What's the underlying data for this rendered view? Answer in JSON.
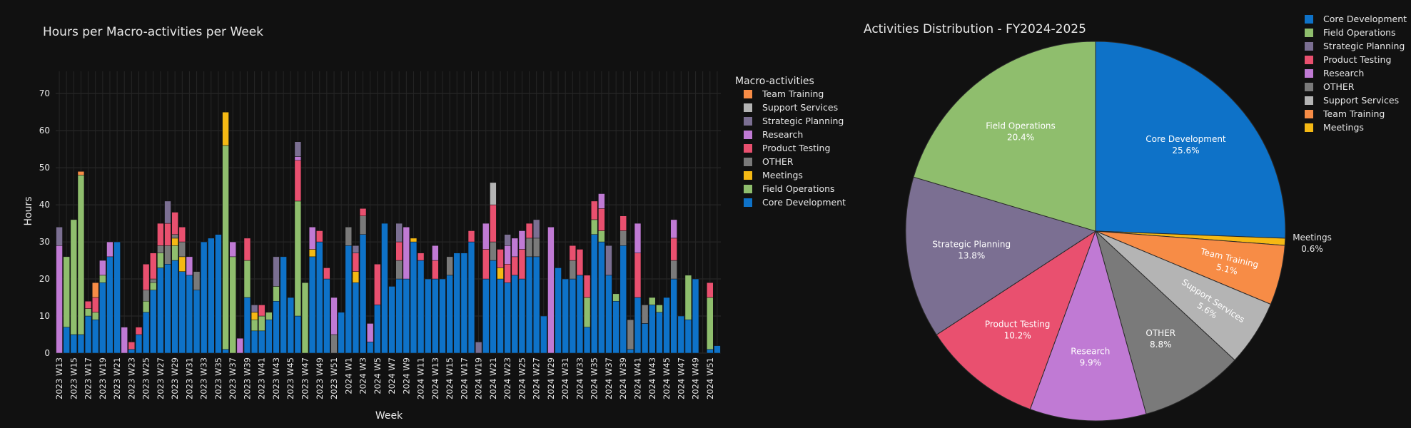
{
  "chart_data": [
    {
      "type": "bar",
      "stacked": true,
      "title": "Hours per Macro-activities per Week",
      "xlabel": "Week",
      "ylabel": "Hours",
      "ylim": [
        0,
        76
      ],
      "yticks": [
        0,
        10,
        20,
        30,
        40,
        50,
        60,
        70
      ],
      "grid": true,
      "legend_title": "Macro-activities",
      "legend_position": "right",
      "categories": [
        "2023 W13",
        "2023 W14",
        "2023 W15",
        "2023 W16",
        "2023 W17",
        "2023 W18",
        "2023 W19",
        "2023 W20",
        "2023 W21",
        "2023 W22",
        "2023 W23",
        "2023 W24",
        "2023 W25",
        "2023 W26",
        "2023 W27",
        "2023 W28",
        "2023 W29",
        "2023 W30",
        "2023 W31",
        "2023 W32",
        "2023 W33",
        "2023 W34",
        "2023 W35",
        "2023 W36",
        "2023 W37",
        "2023 W38",
        "2023 W39",
        "2023 W40",
        "2023 W41",
        "2023 W42",
        "2023 W43",
        "2023 W44",
        "2023 W45",
        "2023 W46",
        "2023 W47",
        "2023 W48",
        "2023 W49",
        "2023 W50",
        "2023 W51",
        "2023 W52",
        "2024 W1",
        "2024 W2",
        "2024 W3",
        "2024 W4",
        "2024 W5",
        "2024 W6",
        "2024 W7",
        "2024 W8",
        "2024 W9",
        "2024 W10",
        "2024 W11",
        "2024 W12",
        "2024 W13",
        "2024 W14",
        "2024 W15",
        "2024 W16",
        "2024 W17",
        "2024 W18",
        "2024 W19",
        "2024 W20",
        "2024 W21",
        "2024 W22",
        "2024 W23",
        "2024 W24",
        "2024 W25",
        "2024 W26",
        "2024 W27",
        "2024 W28",
        "2024 W29",
        "2024 W30",
        "2024 W31",
        "2024 W32",
        "2024 W33",
        "2024 W34",
        "2024 W35",
        "2024 W36",
        "2024 W37",
        "2024 W38",
        "2024 W39",
        "2024 W40",
        "2024 W41",
        "2024 W42",
        "2024 W43",
        "2024 W44",
        "2024 W45",
        "2024 W46",
        "2024 W47",
        "2024 W48",
        "2024 W49",
        "2024 W50",
        "2024 W51",
        "2024 W52"
      ],
      "xtick_labels": [
        "2023 W13",
        "2023 W15",
        "2023 W17",
        "2023 W19",
        "2023 W21",
        "2023 W23",
        "2023 W25",
        "2023 W27",
        "2023 W29",
        "2023 W31",
        "2023 W33",
        "2023 W35",
        "2023 W37",
        "2023 W39",
        "2023 W41",
        "2023 W43",
        "2023 W45",
        "2023 W47",
        "2023 W49",
        "2023 W51",
        "2024 W1",
        "2024 W3",
        "2024 W5",
        "2024 W7",
        "2024 W9",
        "2024 W11",
        "2024 W13",
        "2024 W15",
        "2024 W17",
        "2024 W19",
        "2024 W21",
        "2024 W23",
        "2024 W25",
        "2024 W27",
        "2024 W29",
        "2024 W31",
        "2024 W33",
        "2024 W35",
        "2024 W37",
        "2024 W39",
        "2024 W41",
        "2024 W43",
        "2024 W45",
        "2024 W47",
        "2024 W49",
        "2024 W51"
      ],
      "series": [
        {
          "name": "Core Development",
          "color": "#0e72c8",
          "values": [
            0,
            7,
            5,
            5,
            10,
            9,
            19,
            26,
            30,
            0,
            1,
            5,
            11,
            17,
            23,
            24,
            25,
            22,
            21,
            17,
            30,
            31,
            32,
            1,
            0,
            0,
            15,
            6,
            6,
            9,
            14,
            26,
            15,
            10,
            0,
            26,
            30,
            20,
            0,
            11,
            29,
            19,
            32,
            3,
            13,
            35,
            18,
            20,
            20,
            30,
            25,
            20,
            20,
            20,
            21,
            27,
            27,
            30,
            0,
            20,
            25,
            20,
            19,
            21,
            20,
            26,
            26,
            10,
            0,
            23,
            20,
            20,
            21,
            7,
            32,
            30,
            21,
            14,
            29,
            1,
            15,
            8,
            13,
            11,
            15,
            20,
            10,
            9,
            20,
            0,
            1,
            2
          ]
        },
        {
          "name": "Field Operations",
          "color": "#8fbe6d",
          "values": [
            0,
            19,
            31,
            43,
            2,
            2,
            2,
            0,
            0,
            0,
            0,
            0,
            3,
            2,
            4,
            0,
            4,
            0,
            0,
            0,
            0,
            0,
            0,
            55,
            26,
            0,
            10,
            3,
            4,
            2,
            4,
            0,
            0,
            31,
            19,
            0,
            0,
            0,
            0,
            0,
            0,
            0,
            0,
            0,
            0,
            0,
            0,
            0,
            0,
            0,
            0,
            0,
            0,
            0,
            0,
            0,
            0,
            0,
            0,
            0,
            0,
            0,
            0,
            0,
            0,
            0,
            0,
            0,
            0,
            0,
            0,
            0,
            0,
            8,
            4,
            3,
            0,
            2,
            0,
            0,
            0,
            0,
            2,
            2,
            0,
            0,
            0,
            12,
            0,
            0,
            14,
            0
          ]
        },
        {
          "name": "Meetings",
          "color": "#f5b914",
          "values": [
            0,
            0,
            0,
            0,
            0,
            0,
            0,
            0,
            0,
            0,
            0,
            0,
            0,
            0,
            0,
            0,
            2,
            4,
            0,
            0,
            0,
            0,
            0,
            9,
            0,
            0,
            0,
            2,
            0,
            0,
            0,
            0,
            0,
            0,
            0,
            2,
            0,
            0,
            0,
            0,
            0,
            3,
            0,
            0,
            0,
            0,
            0,
            0,
            0,
            1,
            0,
            0,
            0,
            0,
            0,
            0,
            0,
            0,
            0,
            0,
            0,
            3,
            0,
            0,
            0,
            0,
            0,
            0,
            0,
            0,
            0,
            0,
            0,
            0,
            0,
            0,
            0,
            0,
            0,
            0,
            0,
            0,
            0,
            0,
            0,
            0,
            0,
            0,
            0,
            0,
            0,
            0
          ]
        },
        {
          "name": "OTHER",
          "color": "#7a7a7a",
          "values": [
            0,
            0,
            0,
            0,
            0,
            0,
            0,
            0,
            0,
            0,
            0,
            0,
            3,
            1,
            2,
            5,
            1,
            4,
            0,
            5,
            0,
            0,
            0,
            0,
            0,
            0,
            0,
            0,
            0,
            0,
            0,
            0,
            0,
            0,
            0,
            0,
            0,
            0,
            5,
            0,
            5,
            0,
            5,
            0,
            0,
            0,
            0,
            5,
            0,
            0,
            0,
            0,
            0,
            0,
            5,
            0,
            0,
            0,
            0,
            0,
            5,
            0,
            0,
            0,
            0,
            5,
            5,
            0,
            0,
            0,
            0,
            5,
            0,
            0,
            0,
            0,
            0,
            0,
            4,
            8,
            0,
            5,
            0,
            0,
            0,
            5,
            0,
            0,
            0,
            0,
            0,
            0
          ]
        },
        {
          "name": "Product Testing",
          "color": "#e9506f",
          "values": [
            0,
            0,
            0,
            0,
            2,
            4,
            0,
            0,
            0,
            0,
            2,
            2,
            7,
            7,
            6,
            6,
            6,
            4,
            0,
            0,
            0,
            0,
            0,
            0,
            0,
            0,
            6,
            0,
            3,
            0,
            0,
            0,
            0,
            11,
            0,
            0,
            3,
            3,
            0,
            0,
            0,
            5,
            2,
            0,
            11,
            0,
            0,
            5,
            0,
            0,
            2,
            0,
            5,
            0,
            0,
            0,
            0,
            3,
            0,
            8,
            10,
            5,
            5,
            5,
            8,
            4,
            0,
            0,
            0,
            0,
            0,
            4,
            7,
            6,
            5,
            6,
            0,
            0,
            4,
            0,
            12,
            0,
            0,
            0,
            0,
            6,
            0,
            0,
            0,
            0,
            4,
            0
          ]
        },
        {
          "name": "Research",
          "color": "#c07ad4",
          "values": [
            29,
            0,
            0,
            0,
            0,
            0,
            4,
            4,
            0,
            7,
            0,
            0,
            0,
            0,
            0,
            0,
            0,
            0,
            5,
            0,
            0,
            0,
            0,
            0,
            4,
            4,
            0,
            0,
            0,
            0,
            0,
            0,
            0,
            1,
            0,
            6,
            0,
            0,
            10,
            0,
            0,
            0,
            0,
            5,
            0,
            0,
            0,
            0,
            14,
            0,
            0,
            0,
            4,
            0,
            0,
            0,
            0,
            0,
            0,
            7,
            0,
            0,
            5,
            5,
            5,
            0,
            0,
            0,
            34,
            0,
            0,
            0,
            0,
            0,
            0,
            4,
            0,
            0,
            0,
            0,
            8,
            0,
            0,
            0,
            0,
            5,
            0,
            0,
            0,
            0,
            0,
            0
          ]
        },
        {
          "name": "Strategic Planning",
          "color": "#7b6f92",
          "values": [
            5,
            0,
            0,
            0,
            0,
            0,
            0,
            0,
            0,
            0,
            0,
            0,
            0,
            0,
            0,
            6,
            0,
            0,
            0,
            0,
            0,
            0,
            0,
            0,
            0,
            0,
            0,
            2,
            0,
            0,
            8,
            0,
            0,
            4,
            0,
            0,
            0,
            0,
            0,
            0,
            0,
            2,
            0,
            0,
            0,
            0,
            0,
            5,
            0,
            0,
            0,
            0,
            0,
            0,
            0,
            0,
            0,
            0,
            3,
            0,
            0,
            0,
            3,
            0,
            0,
            0,
            5,
            0,
            0,
            0,
            0,
            0,
            0,
            0,
            0,
            0,
            8,
            0,
            0,
            0,
            0,
            0,
            0,
            0,
            0,
            0,
            0,
            0,
            0,
            0,
            0,
            0
          ]
        },
        {
          "name": "Support Services",
          "color": "#b4b4b4",
          "values": [
            0,
            0,
            0,
            0,
            0,
            0,
            0,
            0,
            0,
            0,
            0,
            0,
            0,
            0,
            0,
            0,
            0,
            0,
            0,
            0,
            0,
            0,
            0,
            0,
            0,
            0,
            0,
            0,
            0,
            0,
            0,
            0,
            0,
            0,
            0,
            0,
            0,
            0,
            0,
            0,
            0,
            0,
            0,
            0,
            0,
            0,
            0,
            0,
            0,
            0,
            0,
            0,
            0,
            0,
            0,
            0,
            0,
            0,
            0,
            0,
            6,
            0,
            0,
            0,
            0,
            0,
            0,
            0,
            0,
            0,
            0,
            0,
            0,
            0,
            0,
            0,
            0,
            0,
            0,
            0,
            0,
            0,
            0,
            0,
            0,
            0,
            0,
            0,
            0,
            0,
            0,
            0
          ]
        },
        {
          "name": "Team Training",
          "color": "#f78c46",
          "values": [
            0,
            0,
            0,
            1,
            0,
            4,
            0,
            0,
            0,
            0,
            0,
            0,
            0,
            0,
            0,
            0,
            0,
            0,
            0,
            0,
            0,
            0,
            0,
            0,
            0,
            0,
            0,
            0,
            0,
            0,
            0,
            0,
            0,
            0,
            0,
            0,
            0,
            0,
            0,
            0,
            0,
            0,
            0,
            0,
            0,
            0,
            0,
            0,
            0,
            0,
            0,
            0,
            0,
            0,
            0,
            0,
            0,
            0,
            0,
            0,
            0,
            0,
            0,
            0,
            0,
            0,
            0,
            0,
            0,
            0,
            0,
            0,
            0,
            0,
            0,
            0,
            0,
            0,
            0,
            0,
            0,
            0,
            0,
            0,
            0,
            0,
            0,
            0,
            0,
            0,
            0,
            0
          ]
        }
      ],
      "legend_order": [
        "Team Training",
        "Support Services",
        "Strategic Planning",
        "Research",
        "Product Testing",
        "OTHER",
        "Meetings",
        "Field Operations",
        "Core Development"
      ]
    },
    {
      "type": "pie",
      "title": "Activities Distribution - FY2024-2025",
      "legend_position": "top-right",
      "slices": [
        {
          "label": "Core Development",
          "value": 25.6,
          "display": "25.6%",
          "color": "#0e72c8"
        },
        {
          "label": "Meetings",
          "value": 0.6,
          "display": "0.6%",
          "color": "#f5b914"
        },
        {
          "label": "Team Training",
          "value": 5.1,
          "display": "5.1%",
          "color": "#f78c46"
        },
        {
          "label": "Support Services",
          "value": 5.6,
          "display": "5.6%",
          "color": "#b4b4b4"
        },
        {
          "label": "OTHER",
          "value": 8.8,
          "display": "8.8%",
          "color": "#7a7a7a"
        },
        {
          "label": "Research",
          "value": 9.9,
          "display": "9.9%",
          "color": "#c07ad4"
        },
        {
          "label": "Product Testing",
          "value": 10.2,
          "display": "10.2%",
          "color": "#e9506f"
        },
        {
          "label": "Strategic Planning",
          "value": 13.8,
          "display": "13.8%",
          "color": "#7b6f92"
        },
        {
          "label": "Field Operations",
          "value": 20.4,
          "display": "20.4%",
          "color": "#8fbe6d"
        }
      ],
      "legend_order": [
        "Core Development",
        "Field Operations",
        "Strategic Planning",
        "Product Testing",
        "Research",
        "OTHER",
        "Support Services",
        "Team Training",
        "Meetings"
      ]
    }
  ]
}
